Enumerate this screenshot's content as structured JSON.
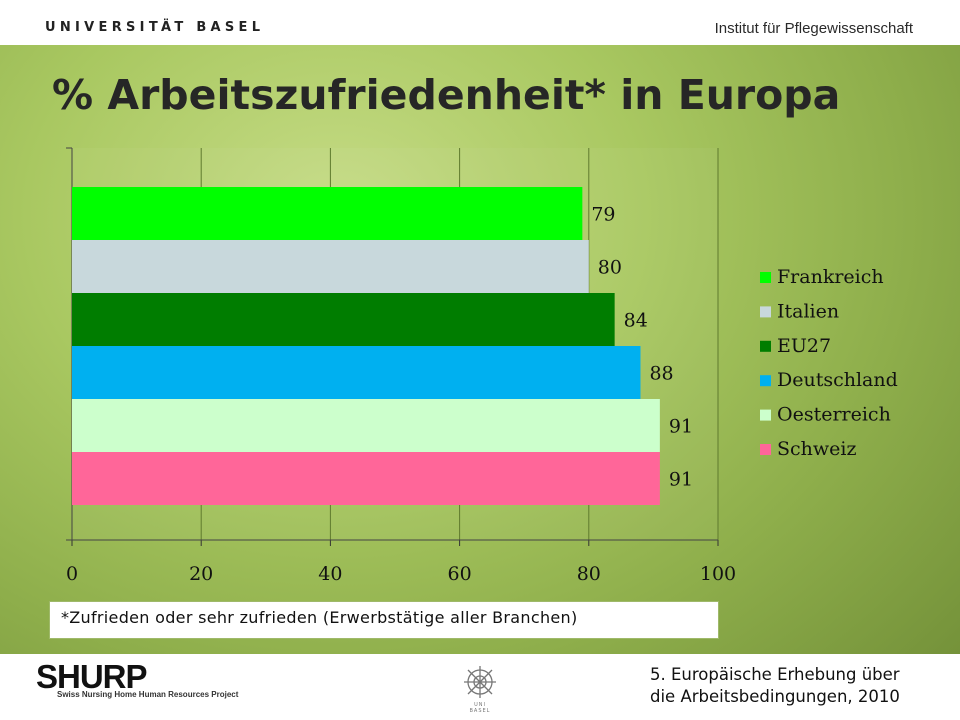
{
  "header": {
    "university": "UNIVERSITÄT BASEL",
    "institute": "Institut für Pflegewissenschaft"
  },
  "chart_data": {
    "type": "bar",
    "orientation": "horizontal",
    "title": "% Arbeitszufriedenheit* in Europa",
    "categories": [
      "Frankreich",
      "Italien",
      "EU27",
      "Deutschland",
      "Oesterreich",
      "Schweiz"
    ],
    "values": [
      79,
      80,
      84,
      88,
      91,
      91
    ],
    "colors": [
      "#00ff00",
      "#c8d8dc",
      "#007d00",
      "#00b0f0",
      "#ccffcc",
      "#ff6699"
    ],
    "xlim": [
      0,
      100
    ],
    "xticks": [
      "0",
      "20",
      "40",
      "60",
      "80",
      "100"
    ],
    "grid": true,
    "legend": "right",
    "data_labels": [
      "79",
      "80",
      "84",
      "88",
      "91",
      "91"
    ]
  },
  "footnote": "*Zufrieden oder sehr zufrieden (Erwerbstätige aller Branchen)",
  "footer": {
    "logo": "SHURP",
    "logo_subtitle": "Swiss Nursing Home Human Resources Project",
    "seal_text": "UNI BASEL",
    "source_line1": "5. Europäische Erhebung über",
    "source_line2": "die Arbeitsbedingungen, 2010"
  }
}
